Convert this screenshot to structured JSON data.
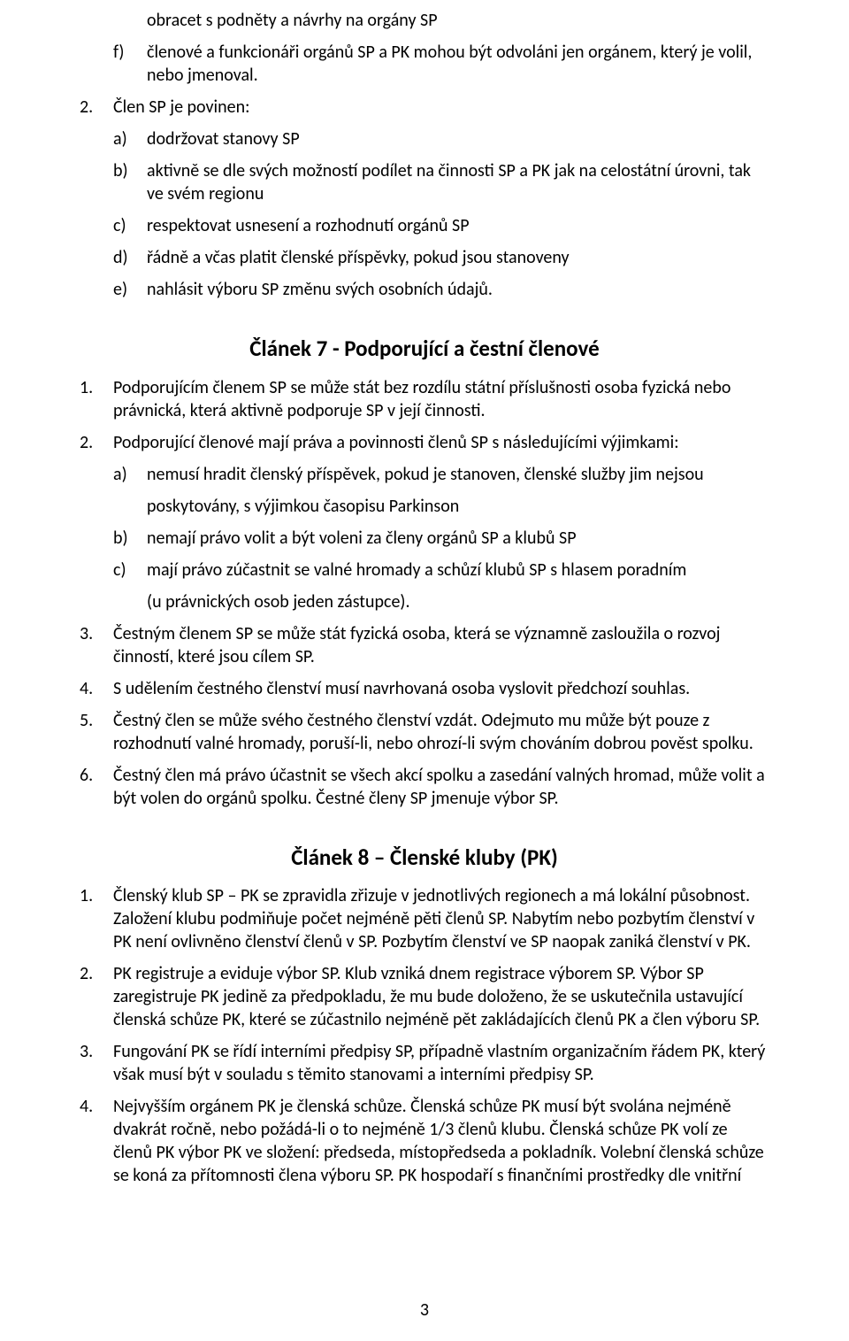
{
  "top": {
    "cont_e": "obracet s podněty a návrhy na orgány SP",
    "f_marker": "f)",
    "f": "členové a funkcionáři orgánů SP a PK mohou být odvoláni jen orgánem, který je volil, nebo jmenoval."
  },
  "sec1": {
    "num2_marker": "2.",
    "num2": "Člen SP je povinen:",
    "a_marker": "a)",
    "a": "dodržovat stanovy SP",
    "b_marker": "b)",
    "b": "aktivně se dle svých možností podílet na činnosti SP a PK jak na celostátní úrovni, tak ve svém regionu",
    "c_marker": "c)",
    "c": "respektovat usnesení a rozhodnutí orgánů SP",
    "d_marker": "d)",
    "d": "řádně a včas platit členské příspěvky, pokud jsou stanoveny",
    "e_marker": "e)",
    "e": "nahlásit výboru SP změnu svých osobních údajů."
  },
  "art7": {
    "title": "Článek 7 -  Podporující a čestní členové",
    "n1_marker": "1.",
    "n1": "Podporujícím členem SP se může stát bez rozdílu státní příslušnosti osoba fyzická nebo právnická, která aktivně podporuje SP v její činnosti.",
    "n2_marker": "2.",
    "n2": "Podporující členové mají práva a povinnosti členů SP s následujícími výjimkami:",
    "a_marker": "a)",
    "a": "nemusí hradit členský příspěvek, pokud je stanoven, členské služby jim nejsou",
    "a_cont": "poskytovány, s výjimkou časopisu Parkinson",
    "b_marker": "b)",
    "b": "nemají právo volit a být voleni za členy orgánů SP a klubů SP",
    "c_marker": "c)",
    "c": "mají právo zúčastnit se valné hromady a schůzí klubů SP s hlasem poradním",
    "c_cont": "(u právnických osob jeden zástupce).",
    "n3_marker": "3.",
    "n3": "Čestným členem SP se může stát fyzická osoba, která se významně zasloužila o rozvoj činností, které jsou cílem SP.",
    "n4_marker": "4.",
    "n4": "S udělením čestného členství musí navrhovaná osoba vyslovit předchozí souhlas.",
    "n5_marker": "5.",
    "n5": "Čestný člen se může svého čestného členství vzdát. Odejmuto mu může být pouze z rozhodnutí valné hromady, poruší-li, nebo ohrozí-li svým chováním dobrou pověst spolku.",
    "n6_marker": "6.",
    "n6": "Čestný člen má právo účastnit se všech akcí spolku a zasedání valných hromad, může volit a být volen do orgánů spolku. Čestné členy SP jmenuje výbor SP."
  },
  "art8": {
    "title": "Článek 8 – Členské kluby (PK)",
    "n1_marker": "1.",
    "n1": "Členský klub SP – PK se zpravidla zřizuje v jednotlivých regionech a má lokální působnost. Založení klubu podmiňuje počet nejméně pěti členů SP.  Nabytím nebo  pozbytím členství v PK není ovlivněno členství členů v SP. Pozbytím členství ve SP naopak zaniká členství v PK.",
    "n2_marker": "2.",
    "n2": "PK registruje a eviduje výbor SP. Klub vzniká dnem registrace výborem SP. Výbor SP zaregistruje PK jedině za předpokladu, že mu bude doloženo, že se uskutečnila ustavující členská schůze PK, které se zúčastnilo nejméně pět zakládajících členů PK a člen výboru SP.",
    "n3_marker": "3.",
    "n3": "Fungování PK se řídí interními předpisy SP, případně vlastním organizačním řádem PK, který však musí být v souladu s těmito stanovami a interními předpisy SP.",
    "n4_marker": "4.",
    "n4": "Nejvyšším orgánem PK je členská schůze. Členská schůze PK musí být svolána nejméně dvakrát ročně, nebo požádá-li o to nejméně 1/3 členů klubu. Členská schůze PK volí ze členů PK výbor PK ve složení: předseda, místopředseda a pokladník.  Volební členská schůze se koná za přítomnosti člena výboru SP. PK hospodaří s finančními prostředky dle vnitřní"
  },
  "page_number": "3"
}
